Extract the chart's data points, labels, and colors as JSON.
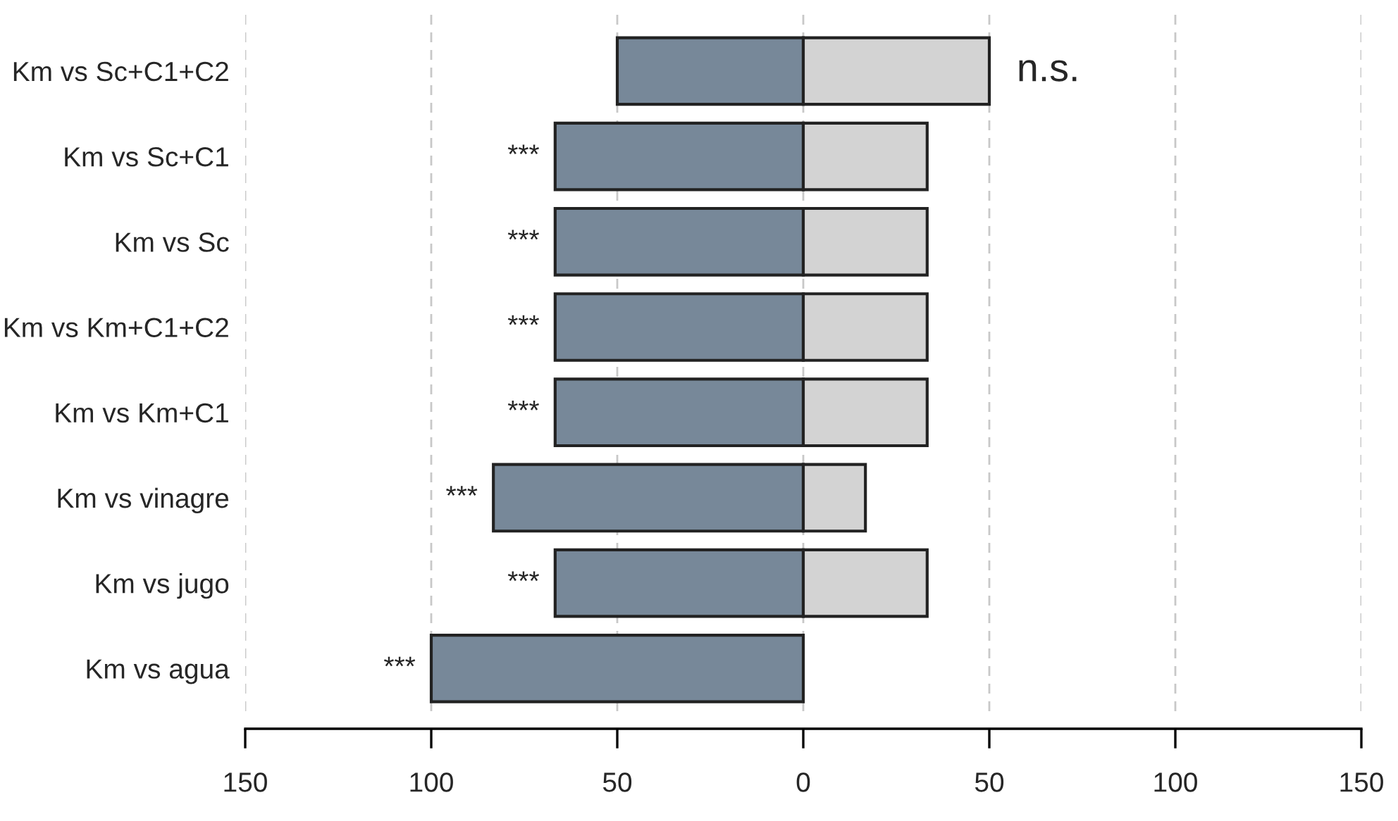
{
  "chart_data": {
    "type": "bar",
    "orientation": "horizontal",
    "categories": [
      "Km vs Sc+C1+C2",
      "Km vs Sc+C1",
      "Km vs Sc",
      "Km vs Km+C1+C2",
      "Km vs Km+C1",
      "Km vs vinagre",
      "Km vs jugo",
      "Km vs agua"
    ],
    "series": [
      {
        "color": "#778899",
        "values": [
          -50,
          -66.7,
          -66.7,
          -66.7,
          -66.7,
          -83.3,
          -66.7,
          -100
        ]
      },
      {
        "color": "#d3d3d3",
        "values": [
          50,
          33.3,
          33.3,
          33.3,
          33.3,
          16.7,
          33.3,
          0
        ]
      }
    ],
    "xlim": [
      -150,
      150
    ],
    "xticks": [
      {
        "value": -150,
        "label": "150"
      },
      {
        "value": -100,
        "label": "100"
      },
      {
        "value": -50,
        "label": "50"
      },
      0,
      50,
      100,
      150
    ],
    "grid": "x",
    "stacked": true,
    "annotations": [
      {
        "text": "n.s.",
        "x": 50,
        "y": "Km vs Sc+C1+C2"
      },
      {
        "text": "***",
        "x": -66.7,
        "y": "Km vs Sc+C1"
      },
      {
        "text": "***",
        "x": -66.7,
        "y": "Km vs Sc"
      },
      {
        "text": "***",
        "x": -66.7,
        "y": "Km vs Km+C1+C2"
      },
      {
        "text": "***",
        "x": -66.7,
        "y": "Km vs Km+C1"
      },
      {
        "text": "***",
        "x": -83.3,
        "y": "Km vs vinagre"
      },
      {
        "text": "***",
        "x": -66.7,
        "y": "Km vs jugo"
      },
      {
        "text": "***",
        "x": -100,
        "y": "Km vs agua"
      }
    ]
  }
}
